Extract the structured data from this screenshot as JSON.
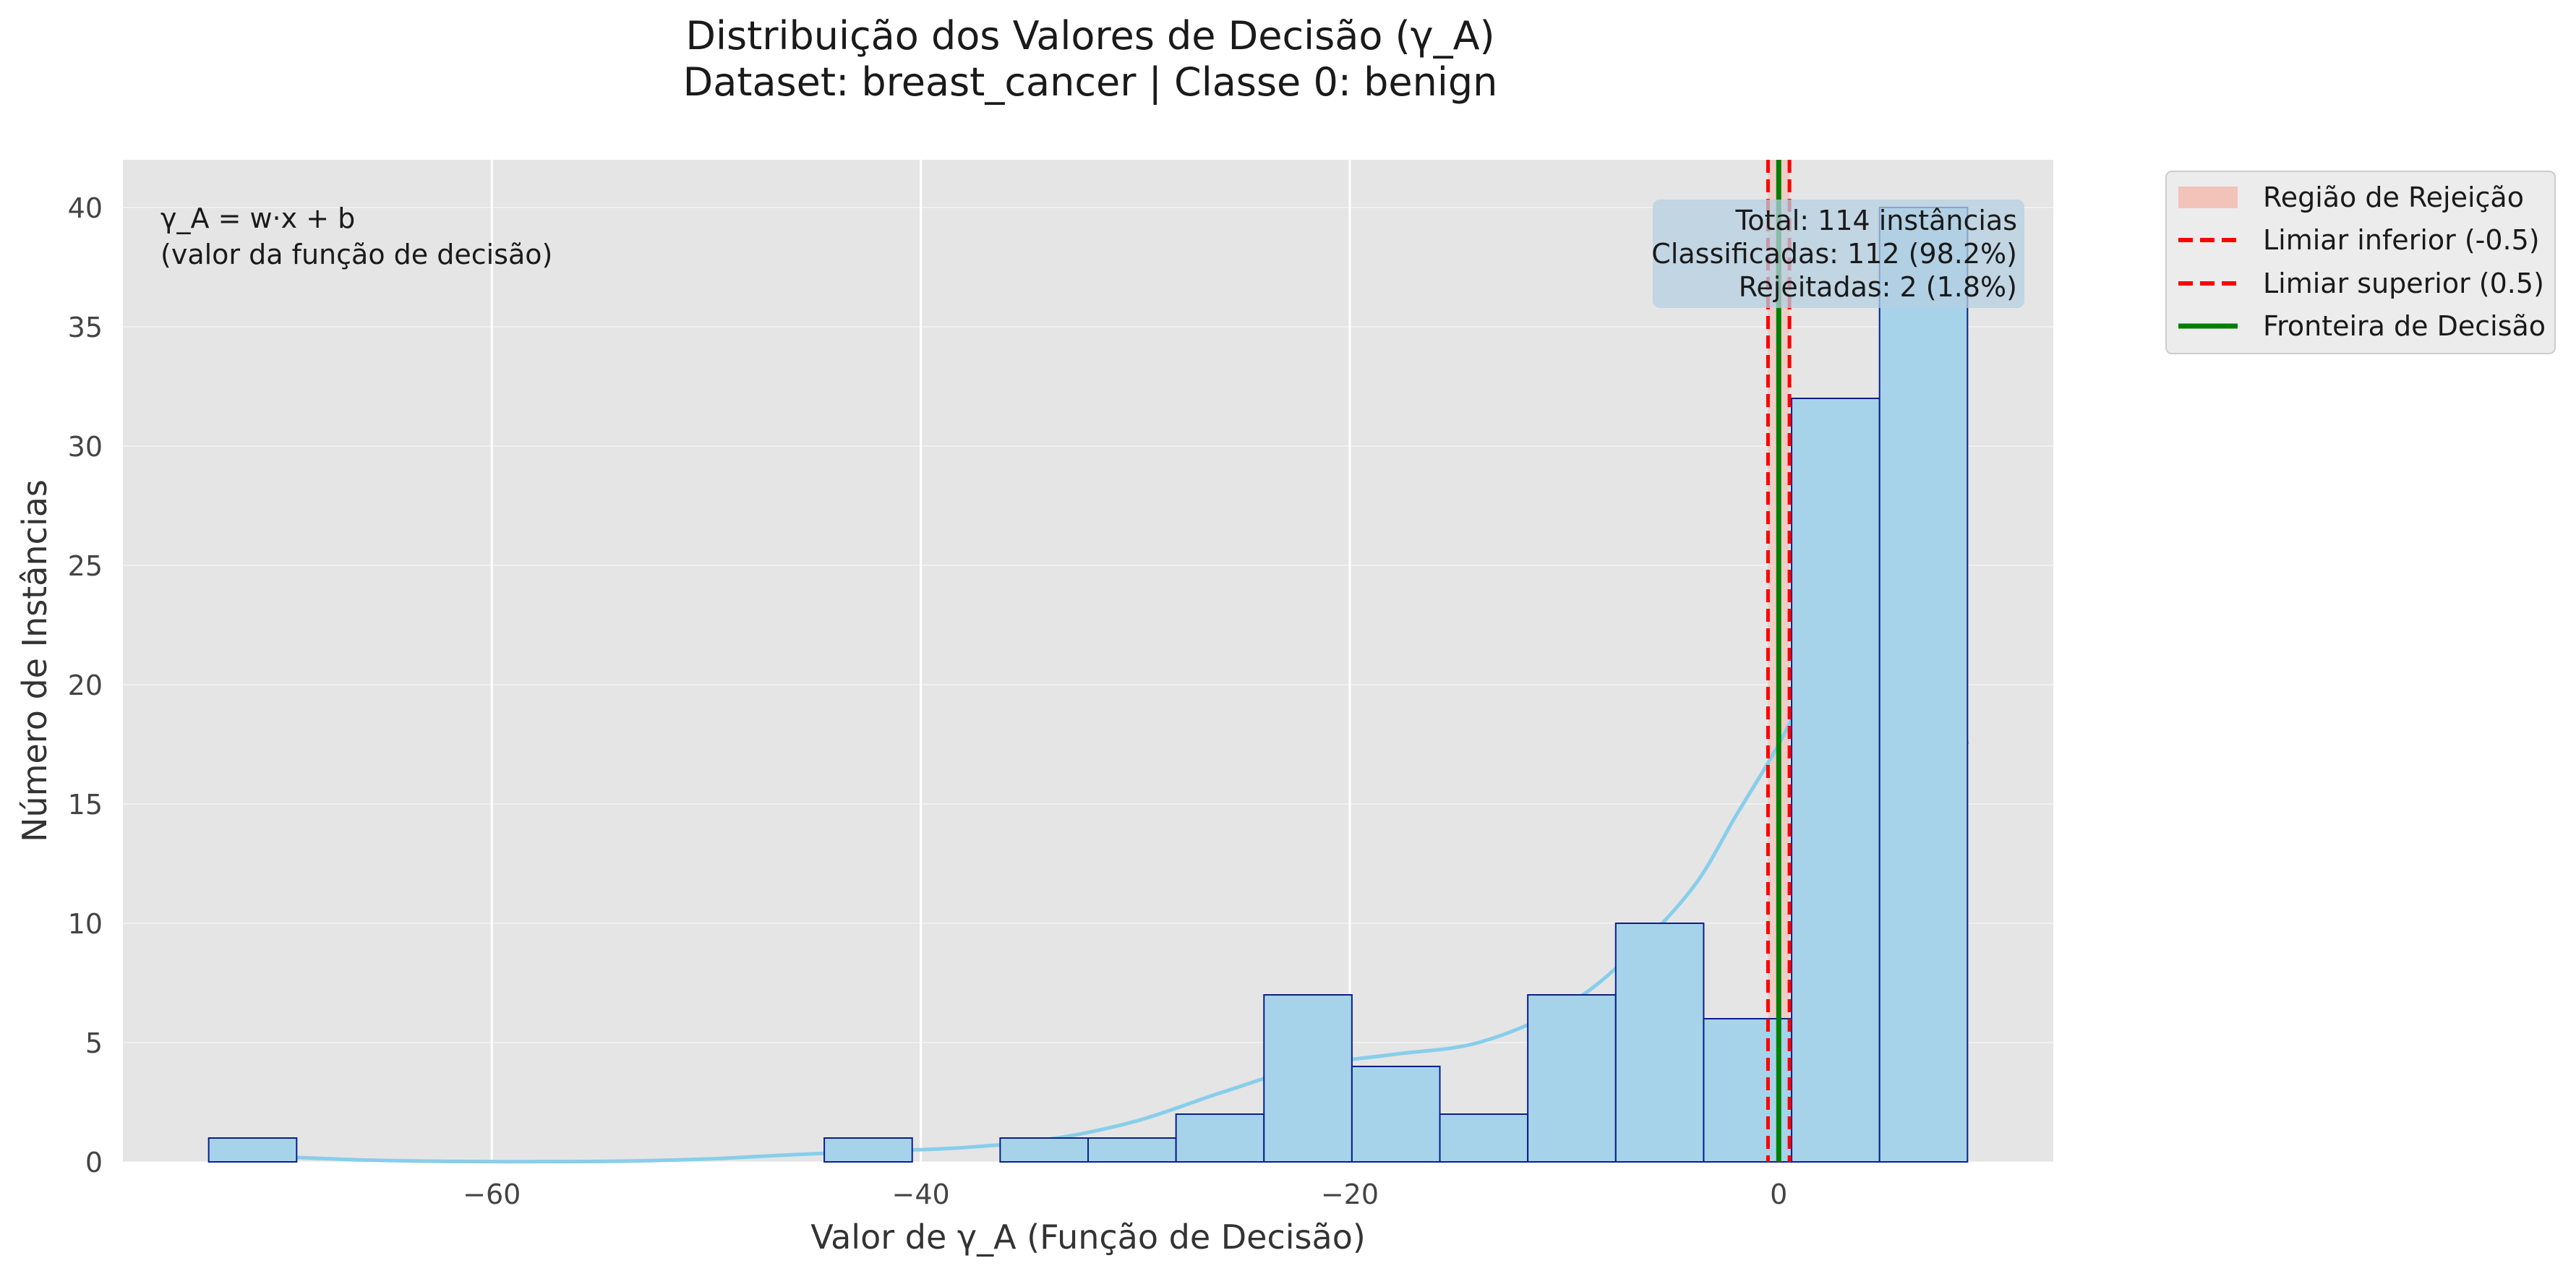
{
  "chart_data": {
    "type": "bar",
    "title_line1": "Distribuição dos Valores de Decisão (γ_A)",
    "title_line2": "Dataset: breast_cancer | Classe 0: benign",
    "xlabel": "Valor de γ_A (Função de Decisão)",
    "ylabel": "Número de Instâncias",
    "xlim": [
      -77.2,
      12.8
    ],
    "ylim": [
      0,
      42
    ],
    "xticks": [
      -60,
      -40,
      -20,
      0
    ],
    "xtick_labels": [
      "−60",
      "−40",
      "−20",
      "0"
    ],
    "yticks": [
      0,
      5,
      10,
      15,
      20,
      25,
      30,
      35,
      40
    ],
    "bins": [
      {
        "start": -73.2,
        "end": -69.1,
        "count": 1
      },
      {
        "start": -44.5,
        "end": -40.4,
        "count": 1
      },
      {
        "start": -36.3,
        "end": -32.2,
        "count": 1
      },
      {
        "start": -32.2,
        "end": -28.1,
        "count": 1
      },
      {
        "start": -28.1,
        "end": -24.0,
        "count": 2
      },
      {
        "start": -24.0,
        "end": -19.9,
        "count": 7
      },
      {
        "start": -19.9,
        "end": -15.8,
        "count": 4
      },
      {
        "start": -15.8,
        "end": -11.7,
        "count": 2
      },
      {
        "start": -11.7,
        "end": -7.6,
        "count": 7
      },
      {
        "start": -7.6,
        "end": -3.5,
        "count": 10
      },
      {
        "start": -3.5,
        "end": 0.6,
        "count": 6
      },
      {
        "start": 0.6,
        "end": 4.7,
        "count": 32
      },
      {
        "start": 4.7,
        "end": 8.8,
        "count": 40
      }
    ],
    "kde": {
      "x": [
        -73.2,
        -70,
        -66,
        -62,
        -58,
        -54,
        -50,
        -46,
        -42,
        -38,
        -34,
        -30,
        -26,
        -22,
        -18,
        -14,
        -10,
        -7,
        -4,
        -2,
        0,
        2,
        4,
        5,
        6,
        8,
        8.8
      ],
      "y": [
        0.35,
        0.22,
        0.08,
        0.02,
        0.01,
        0.03,
        0.12,
        0.3,
        0.45,
        0.6,
        0.95,
        1.7,
        2.9,
        4.0,
        4.5,
        5.0,
        6.5,
        8.6,
        11.5,
        14.5,
        17.5,
        21.0,
        23.5,
        23.8,
        23.6,
        20.0,
        17.5
      ]
    },
    "thresholds": {
      "lower": -0.5,
      "upper": 0.5,
      "boundary": 0
    },
    "annotation_left_line1": "γ_A = w·x + b",
    "annotation_left_line2": "(valor da função de decisão)",
    "stats_line1": "Total: 114 instâncias",
    "stats_line2": "Classificadas: 112 (98.2%)",
    "stats_line3": "Rejeitadas: 2 (1.8%)",
    "legend": [
      {
        "label": "Região de Rejeição",
        "kind": "patch",
        "color": "#f2c3b9"
      },
      {
        "label": "Limiar inferior (-0.5)",
        "kind": "dashed",
        "color": "#ff0000"
      },
      {
        "label": "Limiar superior (0.5)",
        "kind": "dashed",
        "color": "#ff0000"
      },
      {
        "label": "Fronteira de Decisão",
        "kind": "solid",
        "color": "#008000"
      }
    ],
    "legend_position": "outside-top-right",
    "grid": true,
    "colors": {
      "plot_bg": "#e5e5e5",
      "bar_fill": "#a6d3ea",
      "bar_edge": "#0b1f8a",
      "kde": "#87ceeb",
      "threshold": "#ff0000",
      "boundary": "#008000",
      "stats_box": "#b4cfe0"
    }
  }
}
